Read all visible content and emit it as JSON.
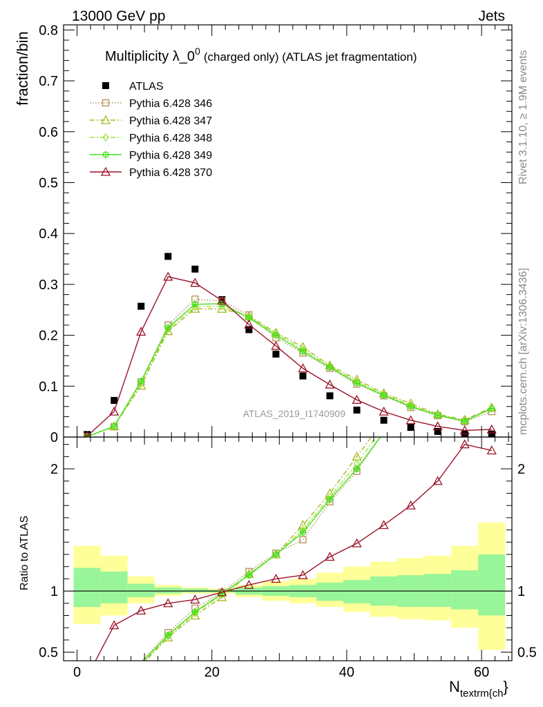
{
  "header": {
    "left": "13000 GeV pp",
    "right": "Jets"
  },
  "side_text": {
    "rivet": "Rivet 3.1.10, ≥ 1.9M events",
    "mcplots": "mcplots.cern.ch [arXiv:1306.3436]"
  },
  "colors": {
    "atlas": "#000000",
    "p346": "#b38e57",
    "p347": "#a8b820",
    "p348": "#9be63a",
    "p349": "#44e01a",
    "p370": "#9b1226",
    "band_inner": "#99f599",
    "band_outer": "#ffff99"
  },
  "chart_data": [
    {
      "type": "scatter",
      "panel": "main",
      "title": "Multiplicity λ_0",
      "title_sup": "0",
      "title_rest": "(charged only) (ATLAS jet fragmentation)",
      "ylabel": "fraction/bin",
      "watermark": "ATLAS_2019_I1740909",
      "xlim": [
        -2,
        64.5
      ],
      "ylim": [
        0,
        0.81
      ],
      "yticks": [
        "0",
        "0.1",
        "0.2",
        "0.3",
        "0.4",
        "0.5",
        "0.6",
        "0.7",
        "0.8"
      ],
      "legend_position": "top-left",
      "series": [
        {
          "name": "ATLAS",
          "marker": "square",
          "x": [
            1.5,
            5.5,
            9.5,
            13.5,
            17.5,
            21.5,
            25.5,
            29.5,
            33.5,
            37.5,
            41.5,
            45.5,
            49.5,
            53.5,
            57.5,
            61.5
          ],
          "values": [
            0.005,
            0.072,
            0.257,
            0.355,
            0.33,
            0.27,
            0.211,
            0.163,
            0.12,
            0.081,
            0.053,
            0.033,
            0.019,
            0.011,
            0.006,
            0.006
          ]
        },
        {
          "name": "Pythia 6.428 346",
          "marker": "open-square",
          "line": "dotted",
          "x": [
            1.5,
            5.5,
            9.5,
            13.5,
            17.5,
            21.5,
            25.5,
            29.5,
            33.5,
            37.5,
            41.5,
            45.5,
            49.5,
            53.5,
            57.5,
            61.5
          ],
          "values": [
            0.001,
            0.02,
            0.108,
            0.22,
            0.271,
            0.267,
            0.24,
            0.195,
            0.165,
            0.135,
            0.104,
            0.081,
            0.058,
            0.042,
            0.03,
            0.05
          ]
        },
        {
          "name": "Pythia 6.428 347",
          "marker": "open-triangle",
          "line": "dash-dot",
          "x": [
            1.5,
            5.5,
            9.5,
            13.5,
            17.5,
            21.5,
            25.5,
            29.5,
            33.5,
            37.5,
            41.5,
            45.5,
            49.5,
            53.5,
            57.5,
            61.5
          ],
          "values": [
            0.001,
            0.021,
            0.101,
            0.208,
            0.252,
            0.252,
            0.238,
            0.205,
            0.177,
            0.141,
            0.113,
            0.086,
            0.066,
            0.045,
            0.034,
            0.058
          ]
        },
        {
          "name": "Pythia 6.428 348",
          "marker": "open-diamond",
          "line": "dash-dot",
          "x": [
            1.5,
            5.5,
            9.5,
            13.5,
            17.5,
            21.5,
            25.5,
            29.5,
            33.5,
            37.5,
            41.5,
            45.5,
            49.5,
            53.5,
            57.5,
            61.5
          ],
          "values": [
            0.001,
            0.021,
            0.106,
            0.212,
            0.256,
            0.257,
            0.236,
            0.203,
            0.172,
            0.139,
            0.109,
            0.084,
            0.062,
            0.044,
            0.032,
            0.056
          ]
        },
        {
          "name": "Pythia 6.428 349",
          "marker": "open-cross",
          "line": "solid",
          "x": [
            1.5,
            5.5,
            9.5,
            13.5,
            17.5,
            21.5,
            25.5,
            29.5,
            33.5,
            37.5,
            41.5,
            45.5,
            49.5,
            53.5,
            57.5,
            61.5
          ],
          "values": [
            0.001,
            0.021,
            0.11,
            0.215,
            0.261,
            0.262,
            0.234,
            0.2,
            0.168,
            0.137,
            0.106,
            0.082,
            0.06,
            0.043,
            0.031,
            0.056
          ]
        },
        {
          "name": "Pythia 6.428 370",
          "marker": "open-triangle",
          "line": "solid",
          "x": [
            1.5,
            5.5,
            9.5,
            13.5,
            17.5,
            21.5,
            25.5,
            29.5,
            33.5,
            37.5,
            41.5,
            45.5,
            49.5,
            53.5,
            57.5,
            61.5
          ],
          "values": [
            0.002,
            0.05,
            0.207,
            0.315,
            0.303,
            0.268,
            0.221,
            0.179,
            0.135,
            0.103,
            0.073,
            0.05,
            0.033,
            0.021,
            0.013,
            0.015
          ]
        }
      ]
    },
    {
      "type": "line",
      "panel": "ratio",
      "ylabel": "Ratio to ATLAS",
      "xlabel": "N",
      "xlabel_sub": "textrm{ch",
      "xlabel_tail": "}",
      "xlim": [
        -2,
        64.5
      ],
      "ylim": [
        0.43,
        2.26
      ],
      "yticks": [
        "0.5",
        "1",
        "2"
      ],
      "xticks": [
        "0",
        "20",
        "40",
        "60"
      ],
      "bands": {
        "edges": [
          -0.5,
          3.5,
          7.5,
          11.5,
          15.5,
          19.5,
          23.5,
          27.5,
          31.5,
          35.5,
          39.5,
          43.5,
          47.5,
          51.5,
          55.5,
          59.5,
          63.5
        ],
        "inner_low": [
          0.87,
          0.9,
          0.95,
          0.98,
          0.99,
          0.99,
          0.97,
          0.96,
          0.95,
          0.92,
          0.9,
          0.88,
          0.87,
          0.87,
          0.85,
          0.8
        ],
        "inner_high": [
          1.19,
          1.16,
          1.06,
          1.03,
          1.02,
          1.01,
          1.03,
          1.04,
          1.05,
          1.07,
          1.09,
          1.12,
          1.13,
          1.14,
          1.17,
          1.3
        ],
        "outer_low": [
          0.73,
          0.8,
          0.9,
          0.96,
          0.98,
          0.98,
          0.95,
          0.92,
          0.9,
          0.87,
          0.83,
          0.79,
          0.77,
          0.76,
          0.7,
          0.52
        ],
        "outer_high": [
          1.37,
          1.29,
          1.12,
          1.05,
          1.03,
          1.02,
          1.05,
          1.08,
          1.1,
          1.15,
          1.2,
          1.24,
          1.27,
          1.29,
          1.37,
          1.56
        ]
      },
      "series": [
        {
          "name": "Pythia 6.428 346",
          "x": [
            9.5,
            13.5,
            17.5,
            21.5,
            25.5,
            29.5,
            33.5,
            37.5,
            41.5,
            45.5
          ],
          "values": [
            0.42,
            0.66,
            0.86,
            0.99,
            1.16,
            1.31,
            1.42,
            1.73,
            1.98,
            2.3
          ]
        },
        {
          "name": "Pythia 6.428 347",
          "x": [
            9.5,
            13.5,
            17.5,
            21.5,
            25.5,
            29.5,
            33.5,
            37.5,
            41.5,
            45.5
          ],
          "values": [
            0.39,
            0.62,
            0.8,
            0.95,
            1.14,
            1.3,
            1.54,
            1.8,
            2.1,
            2.4
          ]
        },
        {
          "name": "Pythia 6.428 348",
          "x": [
            9.5,
            13.5,
            17.5,
            21.5,
            25.5,
            29.5,
            33.5,
            37.5,
            41.5,
            45.5
          ],
          "values": [
            0.4,
            0.63,
            0.82,
            0.97,
            1.14,
            1.3,
            1.5,
            1.77,
            2.04,
            2.35
          ]
        },
        {
          "name": "Pythia 6.428 349",
          "x": [
            9.5,
            13.5,
            17.5,
            21.5,
            25.5,
            29.5,
            33.5,
            37.5,
            41.5,
            45.5
          ],
          "values": [
            0.41,
            0.64,
            0.83,
            0.98,
            1.13,
            1.3,
            1.48,
            1.75,
            2.0,
            2.3
          ]
        },
        {
          "name": "Pythia 6.428 370",
          "x": [
            1.5,
            5.5,
            9.5,
            13.5,
            17.5,
            21.5,
            25.5,
            29.5,
            33.5,
            37.5,
            41.5,
            45.5,
            49.5,
            53.5,
            57.5,
            61.5
          ],
          "values": [
            0.3,
            0.72,
            0.84,
            0.9,
            0.93,
            0.99,
            1.05,
            1.1,
            1.13,
            1.28,
            1.39,
            1.54,
            1.7,
            1.9,
            2.2,
            2.15
          ]
        }
      ]
    }
  ]
}
